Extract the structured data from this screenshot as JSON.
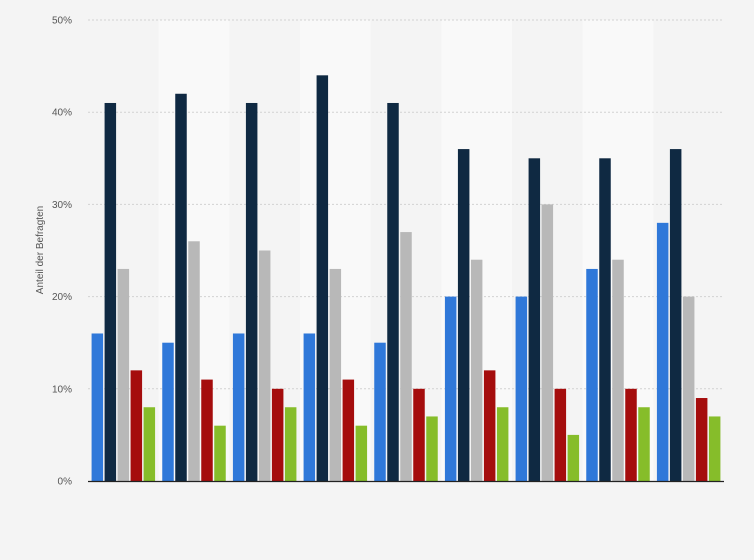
{
  "chart_data": {
    "type": "bar",
    "title": "",
    "xlabel": "",
    "ylabel": "Anteil der Befragten",
    "ylim": [
      0,
      50
    ],
    "y_ticks": [
      "0%",
      "10%",
      "20%",
      "30%",
      "40%",
      "50%"
    ],
    "grid": true,
    "legend": "none",
    "categories": [
      "",
      "",
      "",
      "",
      "",
      "",
      "",
      "",
      ""
    ],
    "series": [
      {
        "color": "#2f78d9",
        "values": [
          16,
          15,
          16,
          16,
          15,
          20,
          20,
          23,
          28
        ]
      },
      {
        "color": "#0f2942",
        "values": [
          41,
          42,
          41,
          44,
          41,
          36,
          35,
          35,
          36
        ]
      },
      {
        "color": "#b8b8b8",
        "values": [
          23,
          26,
          25,
          23,
          27,
          24,
          30,
          24,
          20
        ]
      },
      {
        "color": "#a50d0d",
        "values": [
          12,
          11,
          10,
          11,
          10,
          12,
          10,
          10,
          9
        ]
      },
      {
        "color": "#86bd2a",
        "values": [
          8,
          6,
          8,
          6,
          7,
          8,
          5,
          8,
          7
        ]
      }
    ]
  }
}
